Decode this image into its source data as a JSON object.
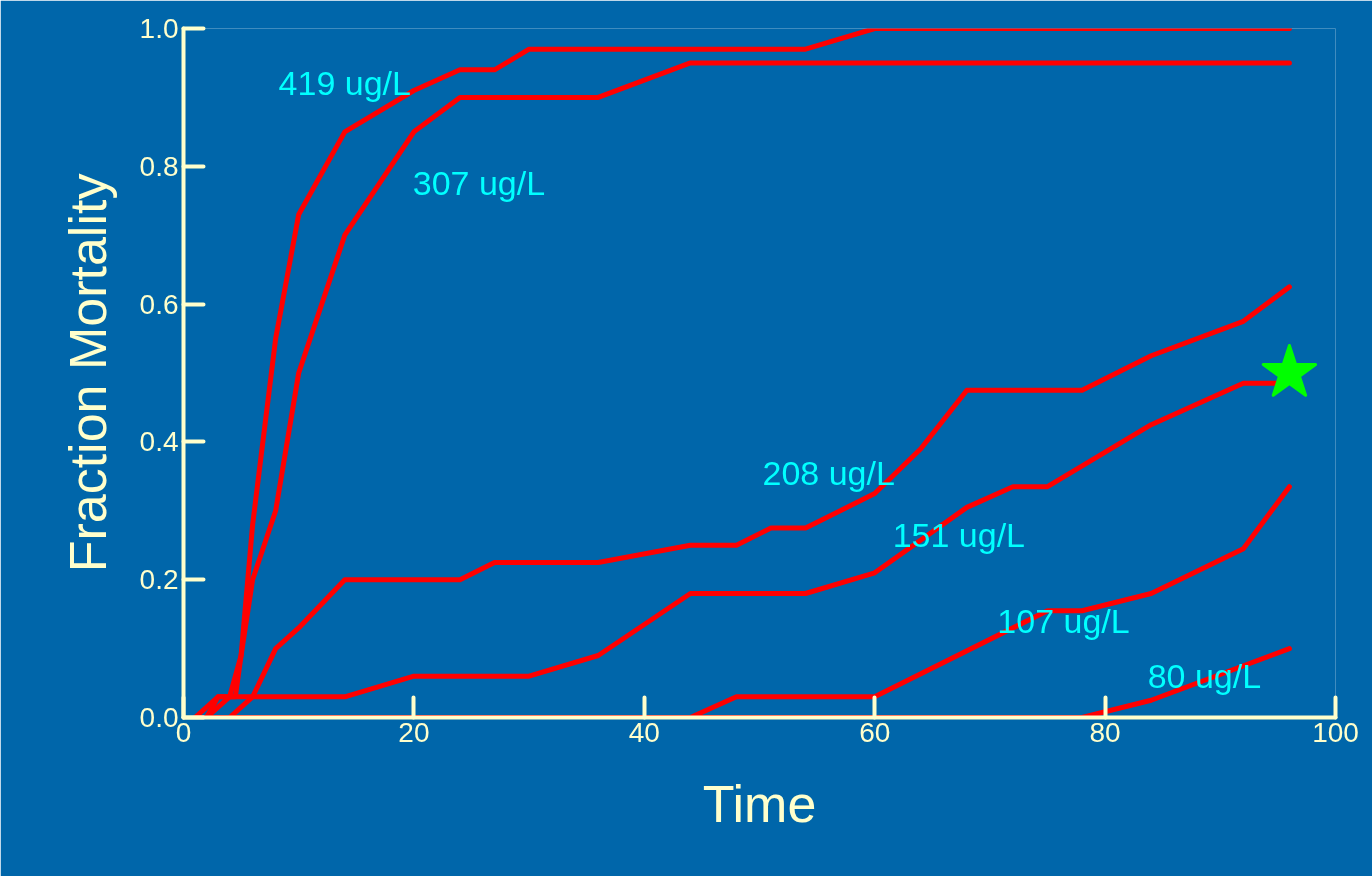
{
  "chart_data": {
    "type": "line",
    "xlabel": "Time",
    "ylabel": "Fraction Mortality",
    "xlim": [
      0,
      100
    ],
    "ylim": [
      0,
      1
    ],
    "xticks": [
      0,
      20,
      40,
      60,
      80,
      100
    ],
    "yticks": [
      {
        "value": 0,
        "label": "0.0"
      },
      {
        "value": 0.2,
        "label": "0.2"
      },
      {
        "value": 0.4,
        "label": "0.4"
      },
      {
        "value": 0.6,
        "label": "0.6"
      },
      {
        "value": 0.8,
        "label": "0.8"
      },
      {
        "value": 1,
        "label": "1.0"
      }
    ],
    "grid": false,
    "marker": "none",
    "line_style": "solid",
    "series": [
      {
        "color": "#ff0000",
        "x": [
          1,
          3,
          4.5,
          5,
          6,
          8,
          10,
          14,
          20,
          24,
          27,
          30,
          54,
          60,
          96
        ],
        "values": [
          0,
          0.03,
          0.03,
          0.09,
          0.28,
          0.55,
          0.73,
          0.85,
          0.91,
          0.94,
          0.94,
          0.97,
          0.97,
          1.0,
          1.0
        ]
      },
      {
        "color": "#ff0000",
        "x": [
          2,
          4,
          5,
          6,
          8,
          10,
          14,
          20,
          24,
          36,
          44,
          96
        ],
        "values": [
          0,
          0.03,
          0.09,
          0.2,
          0.3,
          0.5,
          0.7,
          0.85,
          0.9,
          0.9,
          0.95,
          0.95
        ]
      },
      {
        "color": "#ff0000",
        "x": [
          2,
          3,
          6,
          8,
          10,
          14,
          24,
          27,
          36,
          44,
          48,
          51,
          54,
          60,
          64,
          68,
          78,
          84,
          92,
          96
        ],
        "values": [
          0,
          0.03,
          0.03,
          0.1,
          0.13,
          0.2,
          0.2,
          0.225,
          0.225,
          0.25,
          0.25,
          0.275,
          0.275,
          0.325,
          0.39,
          0.475,
          0.475,
          0.525,
          0.575,
          0.625
        ]
      },
      {
        "color": "#ff0000",
        "x": [
          4,
          6,
          14,
          20,
          30,
          36,
          44,
          54,
          60,
          68,
          72,
          75,
          84,
          92,
          95
        ],
        "values": [
          0,
          0.03,
          0.03,
          0.06,
          0.06,
          0.09,
          0.18,
          0.18,
          0.21,
          0.305,
          0.335,
          0.335,
          0.425,
          0.485,
          0.485
        ]
      },
      {
        "color": "#ff0000",
        "x": [
          1,
          44,
          48,
          60,
          75,
          78,
          84,
          92,
          96
        ],
        "values": [
          0,
          0,
          0.03,
          0.03,
          0.155,
          0.155,
          0.18,
          0.245,
          0.335
        ]
      },
      {
        "color": "#ff0000",
        "x": [
          1,
          78,
          84,
          96
        ],
        "values": [
          0,
          0,
          0.025,
          0.1
        ]
      },
      {
        "type": "scatter",
        "marker": "star",
        "color": "#00ff00",
        "x": [
          96
        ],
        "values": [
          0.5
        ]
      }
    ],
    "annotations": [
      {
        "text": "419 ug/L",
        "x": 14,
        "y": 0.85
      },
      {
        "text": "307 ug/L",
        "x": 20,
        "y": 0.85
      },
      {
        "text": "208 ug/L",
        "x": 60,
        "y": 0.325
      },
      {
        "text": "151 ug/L",
        "x": 68,
        "y": 0.305
      },
      {
        "text": "107 ug/L",
        "x": 75,
        "y": 0.155
      },
      {
        "text": "80 ug/L",
        "x": 96,
        "y": 0.1
      }
    ]
  }
}
